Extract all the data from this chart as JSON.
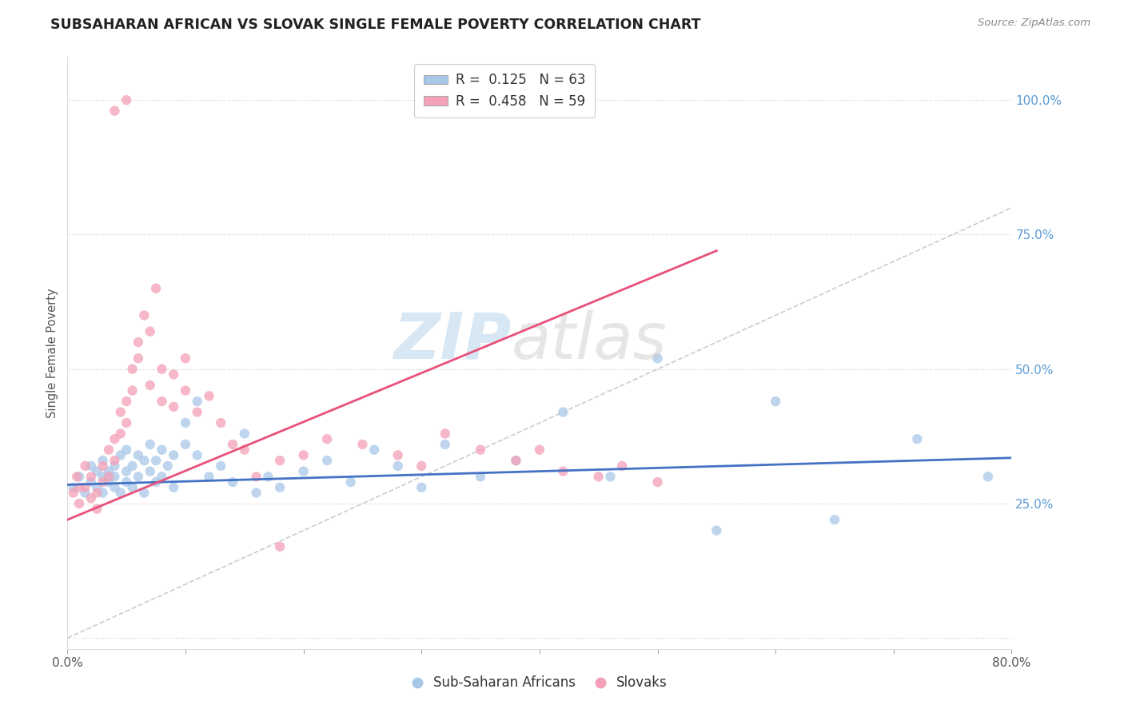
{
  "title": "SUBSAHARAN AFRICAN VS SLOVAK SINGLE FEMALE POVERTY CORRELATION CHART",
  "source": "Source: ZipAtlas.com",
  "ylabel": "Single Female Poverty",
  "xlim": [
    0.0,
    0.8
  ],
  "ylim": [
    -0.02,
    1.08
  ],
  "blue_color": "#a8c8e8",
  "pink_color": "#f4a0b8",
  "blue_line_color": "#4472c4",
  "pink_line_color": "#e8507a",
  "diagonal_color": "#cccccc",
  "legend_sub_label": "Sub-Saharan Africans",
  "legend_slovak_label": "Slovaks",
  "background_color": "#ffffff",
  "grid_color": "#e5e5e5",
  "blue_scatter_x": [
    0.005,
    0.01,
    0.015,
    0.02,
    0.02,
    0.025,
    0.025,
    0.03,
    0.03,
    0.03,
    0.035,
    0.035,
    0.04,
    0.04,
    0.04,
    0.045,
    0.045,
    0.05,
    0.05,
    0.05,
    0.055,
    0.055,
    0.06,
    0.06,
    0.065,
    0.065,
    0.07,
    0.07,
    0.075,
    0.075,
    0.08,
    0.08,
    0.085,
    0.09,
    0.09,
    0.1,
    0.1,
    0.11,
    0.11,
    0.12,
    0.13,
    0.14,
    0.15,
    0.16,
    0.17,
    0.18,
    0.2,
    0.22,
    0.24,
    0.26,
    0.28,
    0.3,
    0.32,
    0.35,
    0.38,
    0.42,
    0.46,
    0.5,
    0.55,
    0.6,
    0.65,
    0.72,
    0.78
  ],
  "blue_scatter_y": [
    0.28,
    0.3,
    0.27,
    0.29,
    0.32,
    0.28,
    0.31,
    0.27,
    0.3,
    0.33,
    0.29,
    0.31,
    0.28,
    0.32,
    0.3,
    0.34,
    0.27,
    0.29,
    0.31,
    0.35,
    0.28,
    0.32,
    0.3,
    0.34,
    0.33,
    0.27,
    0.31,
    0.36,
    0.29,
    0.33,
    0.3,
    0.35,
    0.32,
    0.28,
    0.34,
    0.4,
    0.36,
    0.44,
    0.34,
    0.3,
    0.32,
    0.29,
    0.38,
    0.27,
    0.3,
    0.28,
    0.31,
    0.33,
    0.29,
    0.35,
    0.32,
    0.28,
    0.36,
    0.3,
    0.33,
    0.42,
    0.3,
    0.52,
    0.2,
    0.44,
    0.22,
    0.37,
    0.3
  ],
  "pink_scatter_x": [
    0.005,
    0.008,
    0.01,
    0.01,
    0.015,
    0.015,
    0.02,
    0.02,
    0.025,
    0.025,
    0.03,
    0.03,
    0.035,
    0.035,
    0.04,
    0.04,
    0.045,
    0.045,
    0.05,
    0.05,
    0.055,
    0.055,
    0.06,
    0.06,
    0.065,
    0.07,
    0.07,
    0.075,
    0.08,
    0.08,
    0.09,
    0.09,
    0.1,
    0.1,
    0.11,
    0.12,
    0.13,
    0.14,
    0.15,
    0.16,
    0.18,
    0.2,
    0.22,
    0.25,
    0.28,
    0.3,
    0.32,
    0.35,
    0.38,
    0.4,
    0.42,
    0.45,
    0.47,
    0.5,
    0.18,
    0.04,
    0.05
  ],
  "pink_scatter_y": [
    0.27,
    0.3,
    0.25,
    0.28,
    0.28,
    0.32,
    0.26,
    0.3,
    0.27,
    0.24,
    0.29,
    0.32,
    0.35,
    0.3,
    0.33,
    0.37,
    0.38,
    0.42,
    0.4,
    0.44,
    0.46,
    0.5,
    0.52,
    0.55,
    0.6,
    0.47,
    0.57,
    0.65,
    0.44,
    0.5,
    0.43,
    0.49,
    0.46,
    0.52,
    0.42,
    0.45,
    0.4,
    0.36,
    0.35,
    0.3,
    0.33,
    0.34,
    0.37,
    0.36,
    0.34,
    0.32,
    0.38,
    0.35,
    0.33,
    0.35,
    0.31,
    0.3,
    0.32,
    0.29,
    0.17,
    0.98,
    1.0
  ],
  "blue_line_x": [
    0.0,
    0.8
  ],
  "blue_line_y": [
    0.285,
    0.335
  ],
  "pink_line_x": [
    0.0,
    0.55
  ],
  "pink_line_y": [
    0.22,
    0.72
  ]
}
